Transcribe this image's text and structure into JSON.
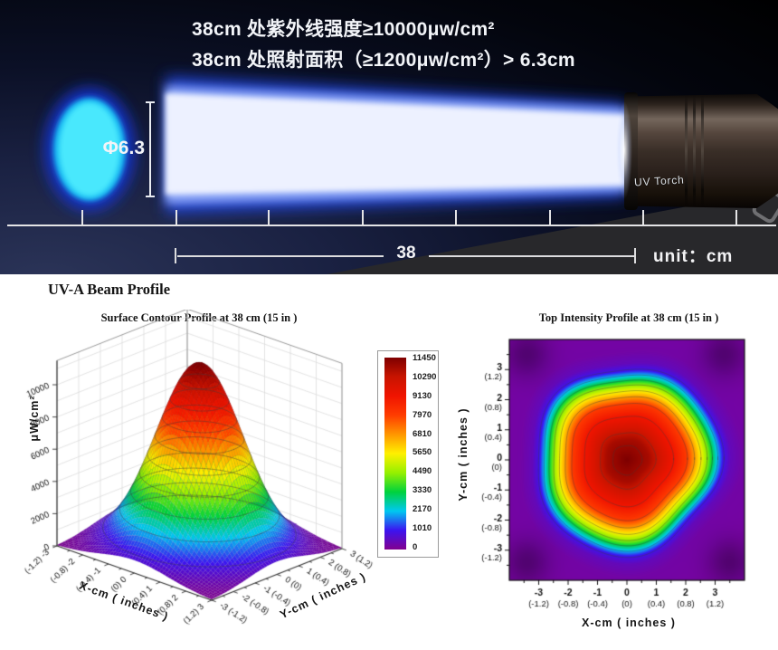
{
  "hero": {
    "spec_line1": "38cm 处紫外线强度≥10000μw/cm²",
    "spec_line2": "38cm 处照射面积（≥1200μw/cm²）> 6.3cm",
    "diameter_label": "Φ6.3",
    "distance_value": "38",
    "unit_label": "unit：cm",
    "torch_label": "UV Torch",
    "beam_core_color": "#edf1ff",
    "beam_edge_color": "#2446dd",
    "spot_color": "#49e8fd"
  },
  "profiles": {
    "heading": "UV-A Beam Profile"
  },
  "colorbar": {
    "labels": [
      "11450",
      "10290",
      "9130",
      "7970",
      "6810",
      "5650",
      "4490",
      "3330",
      "2170",
      "1010",
      "0"
    ],
    "colors_top_to_bottom": [
      "#7E0000",
      "#C81400",
      "#F01400",
      "#FF3C00",
      "#FF9600",
      "#FFF000",
      "#96F000",
      "#00D23C",
      "#00C8F0",
      "#3C14F0",
      "#82008F"
    ]
  },
  "chart_data": [
    {
      "type": "surface",
      "title": "Surface Contour Profile at 38 cm (15 in )",
      "xlabel": "X-cm ( inches )",
      "ylabel": "Y-cm ( inches )",
      "zlabel": "μW/cm²",
      "x_ticks_cm": [
        -3,
        -2,
        -1,
        0,
        1,
        2,
        3
      ],
      "ticks_inches": [
        "(-1.2)",
        "(-0.8)",
        "(-0.4)",
        "(0)",
        "(0.4)",
        "(0.8)",
        "(1.2)"
      ],
      "z_ticks": [
        0,
        2000,
        4000,
        6000,
        8000,
        10000
      ],
      "x_range": [
        -3,
        3
      ],
      "y_range": [
        -3,
        3
      ],
      "z_range": [
        0,
        11500
      ],
      "peak": 11450,
      "sigma": 1.3,
      "contour_levels": [
        1010,
        2170,
        3330,
        4490,
        5650,
        6810,
        7970,
        9130,
        10290
      ],
      "grid": true
    },
    {
      "type": "heatmap",
      "title": "Top Intensity Profile at 38 cm (15 in )",
      "xlabel": "X-cm ( inches )",
      "ylabel": "Y-cm ( inches )",
      "ticks_cm": [
        -3,
        -2,
        -1,
        0,
        1,
        2,
        3
      ],
      "ticks_inches": [
        "(-1.2)",
        "(-0.8)",
        "(-0.4)",
        "(0)",
        "(0.4)",
        "(0.8)",
        "(1.2)"
      ],
      "range": [
        -4,
        4
      ],
      "peak": 11450,
      "radial_profile": [
        [
          0,
          11450
        ],
        [
          0.7,
          10800
        ],
        [
          1.1,
          9900
        ],
        [
          1.5,
          9100
        ],
        [
          1.9,
          8100
        ],
        [
          2.15,
          6810
        ],
        [
          2.4,
          5400
        ],
        [
          2.6,
          4200
        ],
        [
          2.75,
          3100
        ],
        [
          2.9,
          2100
        ],
        [
          3.05,
          1100
        ],
        [
          3.3,
          500
        ],
        [
          3.7,
          260
        ],
        [
          5,
          200
        ]
      ],
      "contour_levels": [
        1010,
        2170,
        3330,
        4490,
        5650,
        6810,
        7970,
        9130,
        10290,
        11000
      ]
    }
  ]
}
